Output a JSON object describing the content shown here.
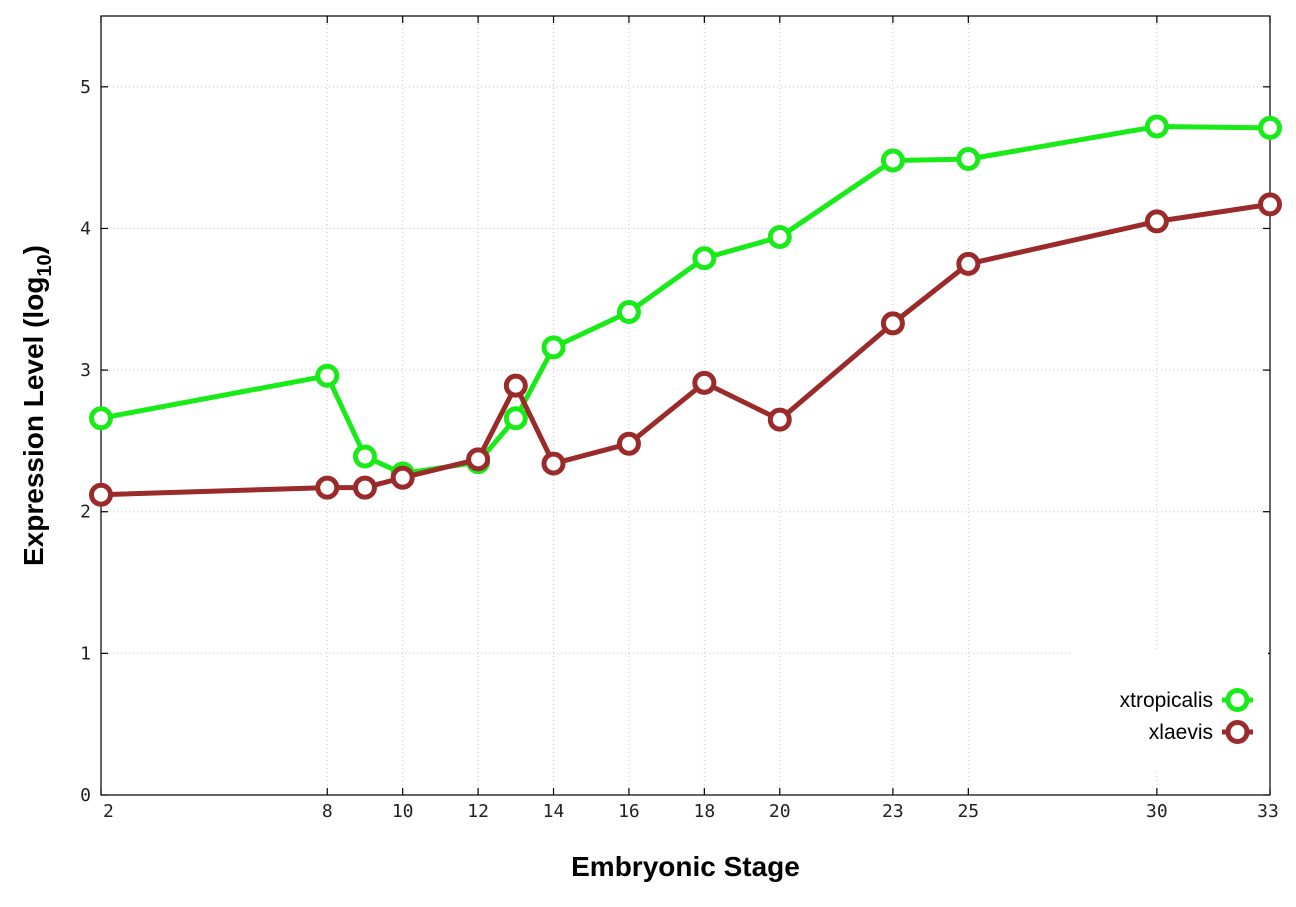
{
  "chart_data": {
    "type": "line",
    "title": "",
    "xlabel": "Embryonic Stage",
    "ylabel_main": "Expression Level (log",
    "ylabel_sub": "10",
    "ylabel_close": ")",
    "x_ticks": [
      2,
      8,
      10,
      12,
      14,
      16,
      18,
      20,
      23,
      25,
      30,
      33
    ],
    "y_ticks": [
      0,
      1,
      2,
      3,
      4,
      5
    ],
    "ylim": [
      0,
      5.5
    ],
    "x_categories": [
      "2",
      "8",
      "9",
      "10",
      "12",
      "13",
      "14",
      "16",
      "18",
      "20",
      "23",
      "25",
      "30",
      "33"
    ],
    "grid": true,
    "legend_position": "bottom-right",
    "series": [
      {
        "name": "xtropicalis",
        "color": "#19eb19",
        "x": [
          "2",
          "8",
          "9",
          "10",
          "12",
          "13",
          "14",
          "16",
          "18",
          "20",
          "23",
          "25",
          "30",
          "33"
        ],
        "values": [
          2.66,
          2.96,
          2.39,
          2.27,
          2.35,
          2.66,
          3.16,
          3.41,
          3.79,
          3.94,
          4.48,
          4.49,
          4.72,
          4.71
        ]
      },
      {
        "name": "xlaevis",
        "color": "#9b2a2a",
        "x": [
          "2",
          "8",
          "9",
          "10",
          "12",
          "13",
          "14",
          "16",
          "18",
          "20",
          "23",
          "25",
          "30",
          "33"
        ],
        "values": [
          2.12,
          2.17,
          2.17,
          2.24,
          2.37,
          2.89,
          2.34,
          2.48,
          2.91,
          2.65,
          3.33,
          3.75,
          4.05,
          4.17
        ]
      }
    ]
  }
}
